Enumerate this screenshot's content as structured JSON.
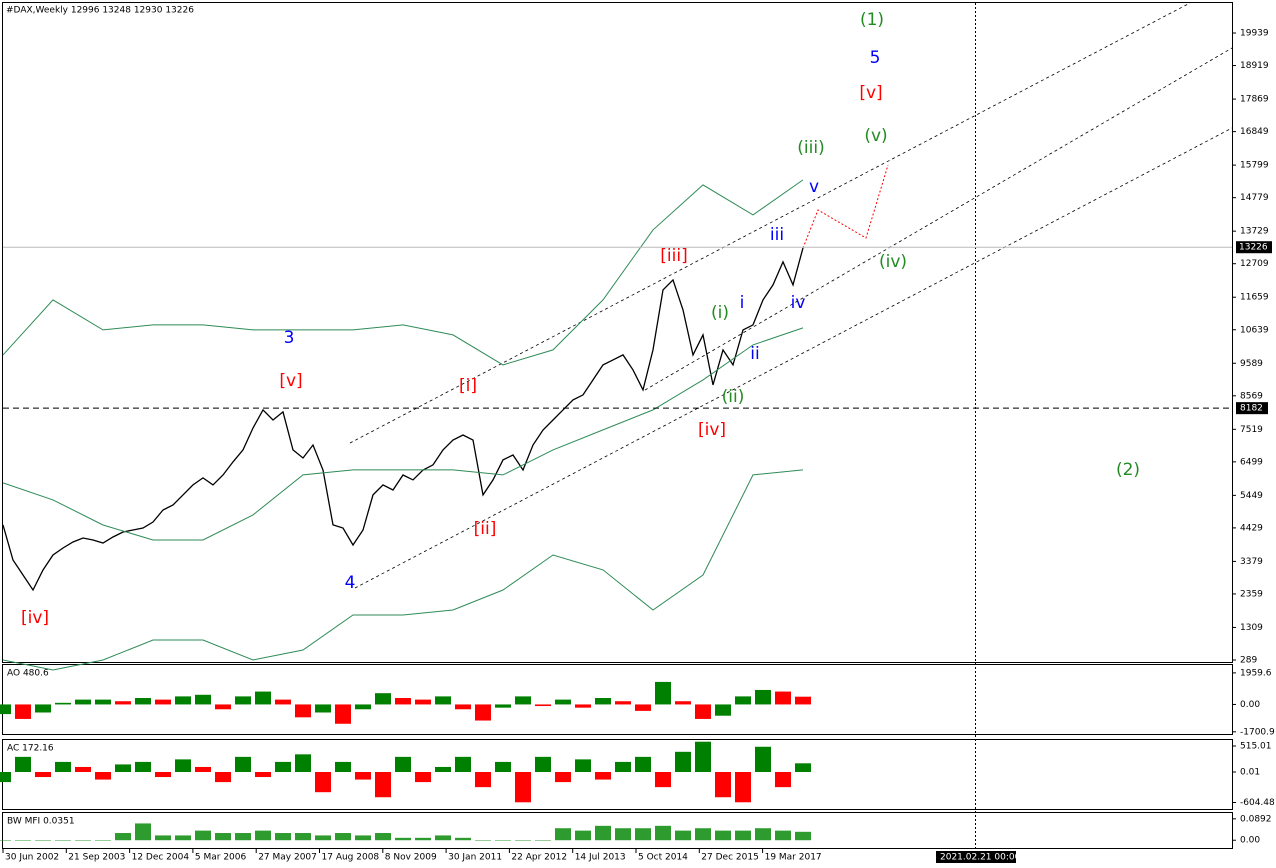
{
  "chart_data": [
    {
      "type": "line",
      "title": "#DAX,Weekly  12996 13248 12930 13226",
      "x_labels": [
        "30 Jun 2002",
        "21 Sep 2003",
        "12 Dec 2004",
        "5 Mar 2006",
        "27 May 2007",
        "17 Aug 2008",
        "8 Nov 2009",
        "30 Jan 2011",
        "22 Apr 2012",
        "14 Jul 2013",
        "5 Oct 2014",
        "27 Dec 2015",
        "19 Mar 2017"
      ],
      "ylim": [
        226,
        20880
      ],
      "yticks": [
        289,
        1309,
        2359,
        3379,
        4429,
        5449,
        6499,
        7519,
        8569,
        9589,
        10639,
        11659,
        12709,
        13729,
        14779,
        15799,
        16849,
        17869,
        18919,
        19939
      ],
      "price_label": 13226,
      "level": 8182,
      "cursor_label": "2021.02.21 00:00",
      "series": [
        {
          "name": "DAX",
          "color": "#000000",
          "values": [
            4522,
            3424,
            2954,
            2483,
            3110,
            3580,
            3800,
            3988,
            4113,
            4050,
            3957,
            4144,
            4301,
            4364,
            4427,
            4615,
            4991,
            5148,
            5462,
            5775,
            5995,
            5775,
            6088,
            6496,
            6872,
            7561,
            8126,
            7812,
            8063,
            6872,
            6621,
            7028,
            6245,
            4522,
            4427,
            3894,
            4364,
            5462,
            5775,
            5618,
            6088,
            5932,
            6245,
            6402,
            6872,
            7185,
            7342,
            7185,
            5462,
            5932,
            6559,
            6715,
            6245,
            7028,
            7498,
            7812,
            8126,
            8440,
            8596,
            9067,
            9537,
            9693,
            9850,
            9380,
            8753,
            10007,
            11888,
            12201,
            11261,
            9850,
            10477,
            8910,
            10007,
            9537,
            10634,
            10791,
            11574,
            12044,
            12765,
            12044,
            13204
          ]
        },
        {
          "name": "Upper band",
          "color": "#2e8b57",
          "values": [
            9851,
            11575,
            10635,
            10791,
            10791,
            10635,
            10635,
            10635,
            10791,
            10478,
            9537,
            10007,
            11575,
            13770,
            15180,
            14240,
            15337
          ]
        },
        {
          "name": "Middle band",
          "color": "#2e8b57",
          "values": [
            5838,
            5305,
            4521,
            4051,
            4051,
            4835,
            6089,
            6246,
            6246,
            6246,
            6089,
            6873,
            7500,
            8127,
            9067,
            10164,
            10697
          ]
        },
        {
          "name": "Lower band",
          "color": "#2e8b57",
          "values": [
            289,
            -25,
            289,
            916,
            916,
            289,
            603,
            1700,
            1700,
            1857,
            2484,
            3581,
            3111,
            1857,
            2954,
            6089,
            6246
          ]
        }
      ],
      "wave_labels": [
        {
          "text": "(1)",
          "color": "#228b22"
        },
        {
          "text": "5",
          "color": "#0000ff"
        },
        {
          "text": "[v]",
          "color": "#ff0000"
        },
        {
          "text": "(v)",
          "color": "#228b22"
        },
        {
          "text": "(iii)",
          "color": "#228b22"
        },
        {
          "text": "v",
          "color": "#0000ff"
        },
        {
          "text": "iii",
          "color": "#0000ff"
        },
        {
          "text": "[iii]",
          "color": "#ff0000"
        },
        {
          "text": "(iv)",
          "color": "#228b22"
        },
        {
          "text": "iv",
          "color": "#0000ff"
        },
        {
          "text": "(i)",
          "color": "#228b22"
        },
        {
          "text": "i",
          "color": "#0000ff"
        },
        {
          "text": "3",
          "color": "#0000ff"
        },
        {
          "text": "ii",
          "color": "#0000ff"
        },
        {
          "text": "[v]",
          "color": "#ff0000"
        },
        {
          "text": "[i]",
          "color": "#ff0000"
        },
        {
          "text": "(ii)",
          "color": "#228b22"
        },
        {
          "text": "[iv]",
          "color": "#ff0000"
        },
        {
          "text": "(2)",
          "color": "#228b22"
        },
        {
          "text": "[ii]",
          "color": "#ff0000"
        },
        {
          "text": "4",
          "color": "#0000ff"
        },
        {
          "text": "[iv]",
          "color": "#ff0000"
        }
      ]
    },
    {
      "type": "bar",
      "title": "AO 480.6",
      "ylim": [
        -1836,
        2450
      ],
      "yticks": [
        1959.6,
        {
          "value": 0,
          "label": "0.00"
        },
        -1700.9
      ],
      "up_color": "#008000",
      "down_color": "#ff0000",
      "values": [
        -600,
        -900,
        -500,
        100,
        300,
        300,
        200,
        400,
        300,
        500,
        600,
        -300,
        500,
        800,
        300,
        -800,
        -500,
        -1200,
        -300,
        700,
        400,
        300,
        500,
        -300,
        -1000,
        -200,
        500,
        -100,
        300,
        -200,
        400,
        200,
        -400,
        1400,
        200,
        -900,
        -700,
        500,
        900,
        800,
        481
      ]
    },
    {
      "type": "bar",
      "title": "AC 172.16",
      "ylim": [
        -733,
        634
      ],
      "yticks": [
        515.01,
        0.01,
        -604.48
      ],
      "up_color": "#008000",
      "down_color": "#ff0000",
      "values": [
        -200,
        300,
        -100,
        200,
        100,
        -150,
        150,
        200,
        -100,
        250,
        100,
        -200,
        300,
        -100,
        200,
        350,
        -400,
        200,
        -150,
        -500,
        300,
        -200,
        100,
        300,
        -300,
        200,
        -600,
        300,
        -200,
        250,
        -150,
        200,
        300,
        -300,
        400,
        600,
        -500,
        -600,
        500,
        -300,
        172
      ]
    },
    {
      "type": "bar",
      "title": "BW MFI 0.0351",
      "ylim": [
        -0.0324,
        0.1135
      ],
      "yticks": [
        0.0892,
        {
          "value": 0,
          "label": "0.00"
        }
      ],
      "color": "#2e9b2e",
      "values": [
        0,
        0,
        0,
        0,
        0,
        0,
        0.03,
        0.07,
        0.02,
        0.02,
        0.04,
        0.03,
        0.03,
        0.04,
        0.03,
        0.03,
        0.02,
        0.03,
        0.02,
        0.03,
        0.01,
        0.01,
        0.02,
        0.01,
        0,
        0,
        0,
        0,
        0.05,
        0.04,
        0.06,
        0.05,
        0.05,
        0.06,
        0.04,
        0.05,
        0.04,
        0.04,
        0.05,
        0.04,
        0.0351
      ]
    }
  ]
}
